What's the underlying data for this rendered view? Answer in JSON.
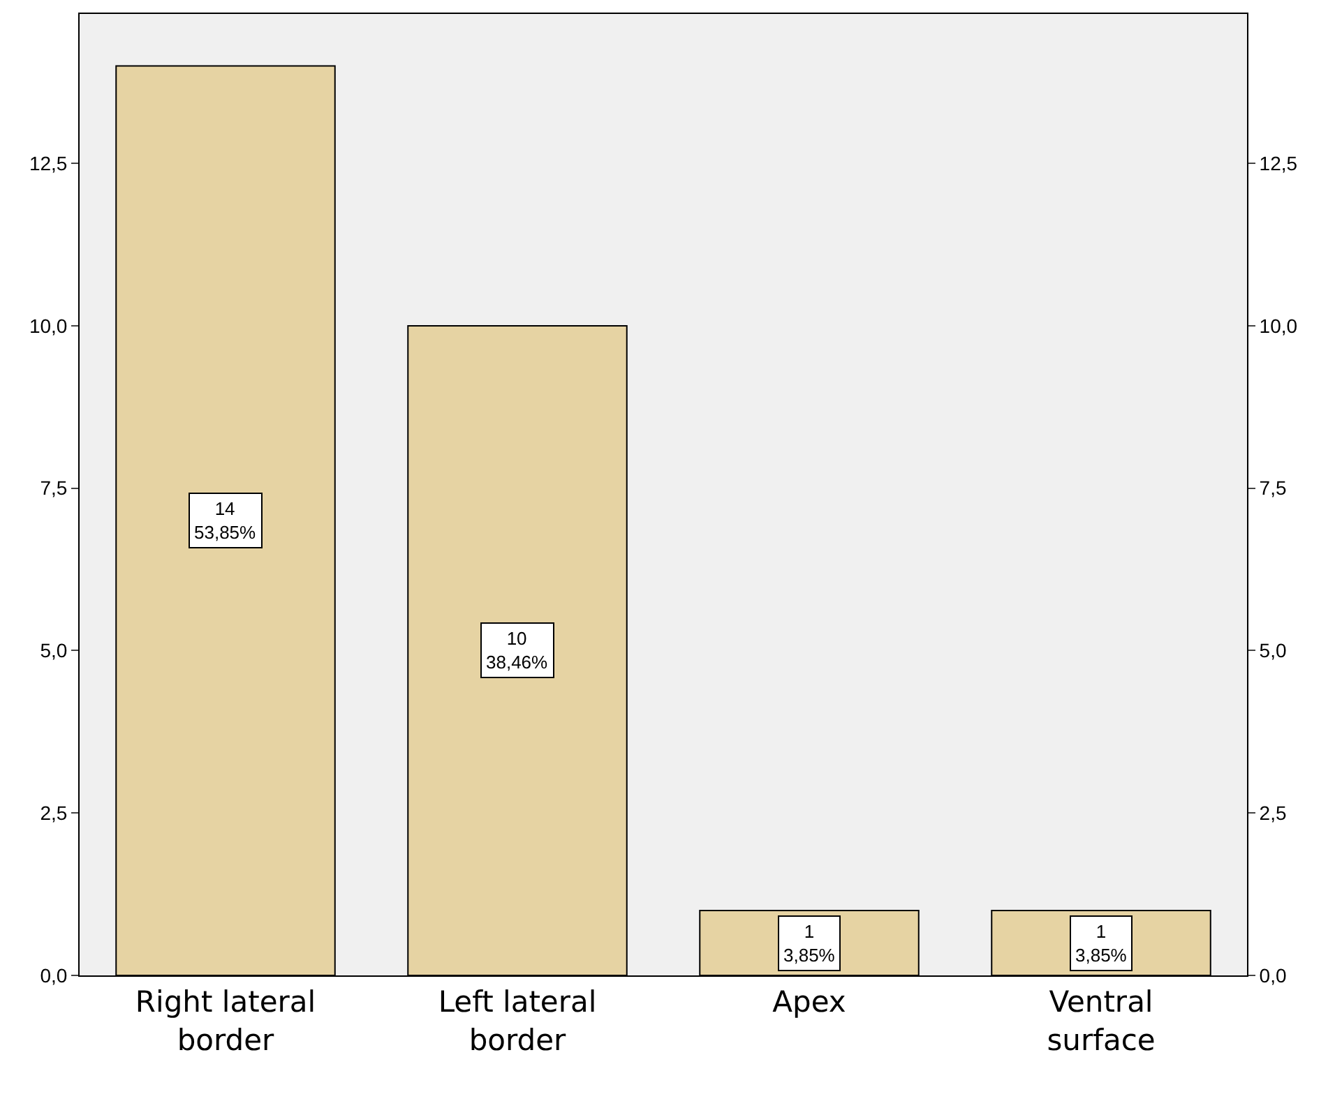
{
  "chart_data": {
    "type": "bar",
    "categories": [
      "Right lateral\nborder",
      "Left lateral\nborder",
      "Apex",
      "Ventral\nsurface"
    ],
    "values": [
      14,
      10,
      1,
      1
    ],
    "value_labels": [
      "14\n53,85%",
      "10\n38,46%",
      "1\n3,85%",
      "1\n3,85%"
    ],
    "color": "#e6d3a3",
    "ylim": [
      0,
      14.8
    ],
    "yticks": [
      {
        "value": 0,
        "label": "0,0"
      },
      {
        "value": 2.5,
        "label": "2,5"
      },
      {
        "value": 5,
        "label": "5,0"
      },
      {
        "value": 7.5,
        "label": "7,5"
      },
      {
        "value": 10,
        "label": "10,0"
      },
      {
        "value": 12.5,
        "label": "12,5"
      }
    ],
    "y2lim": [
      0,
      14.8
    ],
    "y2ticks": [
      {
        "value": 0,
        "label": "0,0"
      },
      {
        "value": 2.5,
        "label": "2,5"
      },
      {
        "value": 5,
        "label": "5,0"
      },
      {
        "value": 7.5,
        "label": "7,5"
      },
      {
        "value": 10,
        "label": "10,0"
      },
      {
        "value": 12.5,
        "label": "12,5"
      }
    ],
    "grid": false,
    "legend": false
  }
}
